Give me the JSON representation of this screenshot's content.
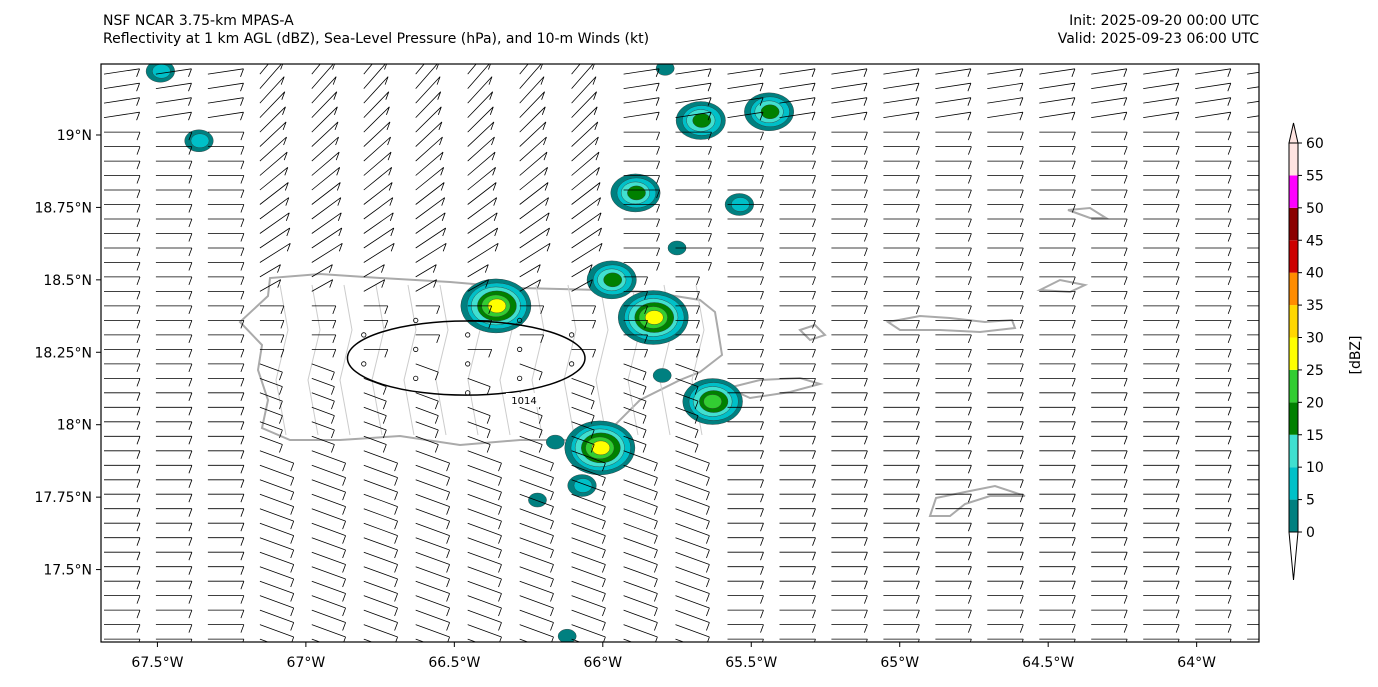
{
  "header": {
    "model": "NSF NCAR 3.75-km MPAS-A",
    "fields": "Reflectivity at 1 km AGL (dBZ), Sea-Level Pressure (hPa), and 10-m Winds (kt)",
    "init": "Init: 2025-09-20 00:00 UTC",
    "valid": "Valid: 2025-09-23 06:00 UTC"
  },
  "map": {
    "lon_range": [
      -67.69,
      -63.79
    ],
    "lat_range": [
      17.25,
      19.245
    ],
    "lon_ticks": [
      {
        "v": -67.5,
        "label": "67.5°W"
      },
      {
        "v": -67,
        "label": "67°W"
      },
      {
        "v": -66.5,
        "label": "66.5°W"
      },
      {
        "v": -66,
        "label": "66°W"
      },
      {
        "v": -65.5,
        "label": "65.5°W"
      },
      {
        "v": -65,
        "label": "65°W"
      },
      {
        "v": -64.5,
        "label": "64.5°W"
      },
      {
        "v": -64,
        "label": "64°W"
      }
    ],
    "lat_ticks": [
      {
        "v": 19,
        "label": "19°N"
      },
      {
        "v": 18.75,
        "label": "18.75°N"
      },
      {
        "v": 18.5,
        "label": "18.5°N"
      },
      {
        "v": 18.25,
        "label": "18.25°N"
      },
      {
        "v": 18,
        "label": "18°N"
      },
      {
        "v": 17.75,
        "label": "17.75°N"
      },
      {
        "v": 17.5,
        "label": "17.5°N"
      }
    ],
    "pressure_contour": {
      "value": "1014",
      "center_lon": -66.46,
      "center_lat": 18.23,
      "lon_radius": 0.4,
      "lat_radius": 0.128
    },
    "reflectivity_cells": [
      {
        "lon": -67.49,
        "lat": 19.22,
        "max_dbz": 10
      },
      {
        "lon": -67.36,
        "lat": 18.98,
        "max_dbz": 10
      },
      {
        "lon": -65.67,
        "lat": 19.05,
        "max_dbz": 20
      },
      {
        "lon": -65.44,
        "lat": 19.08,
        "max_dbz": 20
      },
      {
        "lon": -65.89,
        "lat": 18.8,
        "max_dbz": 20
      },
      {
        "lon": -65.54,
        "lat": 18.76,
        "max_dbz": 10
      },
      {
        "lon": -65.75,
        "lat": 18.61,
        "max_dbz": 5
      },
      {
        "lon": -65.97,
        "lat": 18.5,
        "max_dbz": 20
      },
      {
        "lon": -66.36,
        "lat": 18.41,
        "max_dbz": 30
      },
      {
        "lon": -65.83,
        "lat": 18.37,
        "max_dbz": 30
      },
      {
        "lon": -65.8,
        "lat": 18.17,
        "max_dbz": 5
      },
      {
        "lon": -65.63,
        "lat": 18.08,
        "max_dbz": 25
      },
      {
        "lon": -66.01,
        "lat": 17.92,
        "max_dbz": 30
      },
      {
        "lon": -66.16,
        "lat": 17.94,
        "max_dbz": 5
      },
      {
        "lon": -66.07,
        "lat": 17.79,
        "max_dbz": 10
      },
      {
        "lon": -66.22,
        "lat": 17.74,
        "max_dbz": 5
      },
      {
        "lon": -65.79,
        "lat": 19.23,
        "max_dbz": 5
      },
      {
        "lon": -66.12,
        "lat": 17.27,
        "max_dbz": 5
      }
    ]
  },
  "colorbar": {
    "label": "[dBZ]",
    "levels": [
      "0",
      "5",
      "10",
      "15",
      "20",
      "25",
      "30",
      "35",
      "40",
      "45",
      "50",
      "55",
      "60"
    ],
    "colors": [
      "#008080",
      "#00c0c8",
      "#40e0d0",
      "#008000",
      "#32cd32",
      "#ffff00",
      "#ffd700",
      "#ff8c00",
      "#cc0000",
      "#8b0000",
      "#ff00ff",
      "#ffe4e1"
    ]
  }
}
